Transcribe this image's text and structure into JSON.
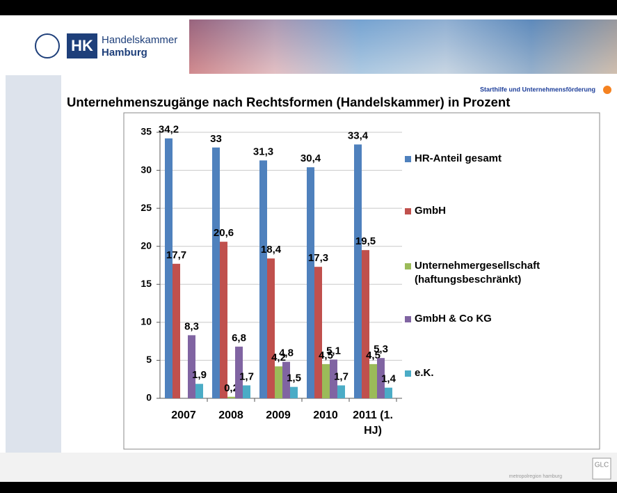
{
  "header": {
    "logo_mark": "HK",
    "logo_line1": "Handelskammer",
    "logo_line2": "Hamburg"
  },
  "section_label": "Starthilfe und Unternehmensförderung",
  "footer": {
    "region": "metropolregion hamburg",
    "badge": "GLC"
  },
  "chart_data": {
    "type": "bar",
    "title": "Unternehmenszugänge nach Rechtsformen (Handelskammer) in Prozent",
    "categories": [
      "2007",
      "2008",
      "2009",
      "2010",
      "2011 (1. HJ)"
    ],
    "series": [
      {
        "name": "HR-Anteil gesamt",
        "color": "#4f81bd",
        "values": [
          34.2,
          33,
          31.3,
          30.4,
          33.4
        ],
        "value_labels": [
          "34,2",
          "33",
          "31,3",
          "30,4",
          "33,4"
        ]
      },
      {
        "name": "GmbH",
        "color": "#c0504d",
        "values": [
          17.7,
          20.6,
          18.4,
          17.3,
          19.5
        ],
        "value_labels": [
          "17,7",
          "20,6",
          "18,4",
          "17,3",
          "19,5"
        ]
      },
      {
        "name": "Unternehmergesellschaft (haftungsbeschränkt)",
        "color": "#9bbb59",
        "values": [
          null,
          0.2,
          4.2,
          4.5,
          4.5
        ],
        "value_labels": [
          null,
          "0,2",
          "4,2",
          "4,5",
          "4,5"
        ]
      },
      {
        "name": "GmbH & Co KG",
        "color": "#8064a2",
        "values": [
          8.3,
          6.8,
          4.8,
          5.1,
          5.3
        ],
        "value_labels": [
          "8,3",
          "6,8",
          "4,8",
          "5,1",
          "5,3"
        ]
      },
      {
        "name": "e.K.",
        "color": "#4bacc6",
        "values": [
          1.9,
          1.7,
          1.5,
          1.7,
          1.4
        ],
        "value_labels": [
          "1,9",
          "1,7",
          "1,5",
          "1,7",
          "1,4"
        ]
      }
    ],
    "ylim": [
      0,
      35
    ],
    "yticks": [
      0,
      5,
      10,
      15,
      20,
      25,
      30,
      35
    ],
    "grid": true,
    "legend": "right"
  }
}
